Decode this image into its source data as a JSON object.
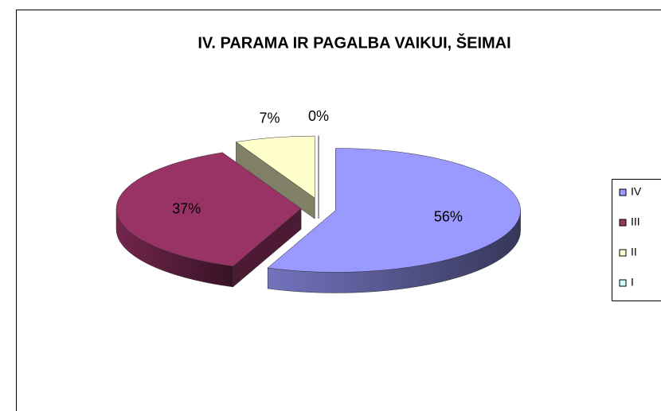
{
  "chart_data": {
    "type": "pie",
    "title": "IV. PARAMA IR PAGALBA VAIKUI, ŠEIMAI",
    "categories": [
      "IV",
      "III",
      "II",
      "I"
    ],
    "values": [
      56,
      37,
      7,
      0
    ],
    "value_labels": [
      "56%",
      "37%",
      "7%",
      "0%"
    ],
    "colors": [
      "#9999ff",
      "#993366",
      "#ffffcc",
      "#ccffff"
    ],
    "legend": "right"
  }
}
